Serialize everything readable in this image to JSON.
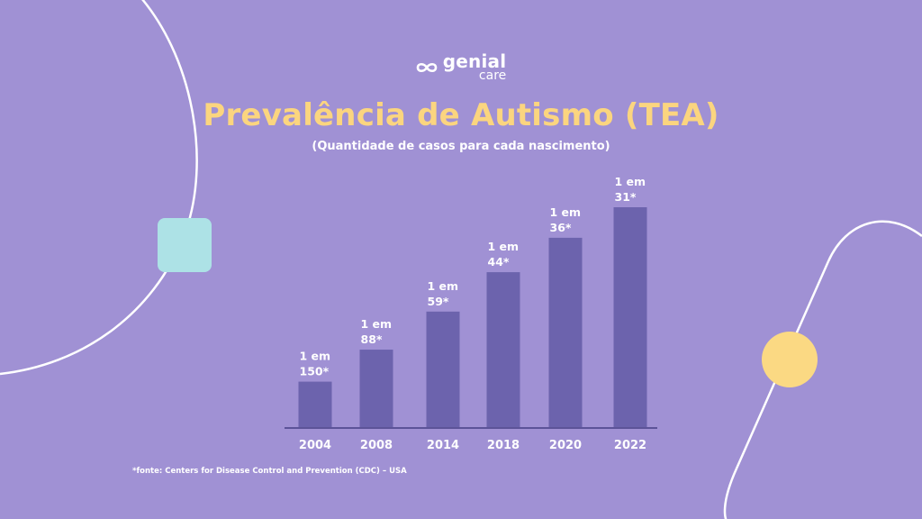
{
  "brand": {
    "name": "genial",
    "sub": "care",
    "logo_icon": "infinity-logo-icon"
  },
  "colors": {
    "background": "#a091d4",
    "bar": "#6c63ad",
    "title": "#fbd57f",
    "text": "#ffffff",
    "teal_square": "#ade2e6",
    "yellow_circle": "#fbd983",
    "axis": "#5c5398"
  },
  "title": "Prevalência de Autismo (TEA)",
  "subtitle": "(Quantidade de casos para cada nascimento)",
  "footnote": "*fonte: Centers for Disease Control and Prevention (CDC) – USA",
  "chart_data": {
    "type": "bar",
    "title": "Prevalência de Autismo (TEA)",
    "subtitle": "(Quantidade de casos para cada nascimento)",
    "xlabel": "",
    "ylabel": "",
    "grid": false,
    "categories": [
      "2004",
      "2008",
      "2014",
      "2018",
      "2020",
      "2022"
    ],
    "values": [
      150,
      88,
      59,
      44,
      36,
      31
    ],
    "label_lines": [
      [
        "1 em",
        "150*"
      ],
      [
        "1 em",
        "88*"
      ],
      [
        "1 em",
        "59*"
      ],
      [
        "1 em",
        "44*"
      ],
      [
        "1 em",
        "36*"
      ],
      [
        "1 em",
        "31*"
      ]
    ],
    "encoding": "bar height proportional to prevalence (1 / value)"
  }
}
